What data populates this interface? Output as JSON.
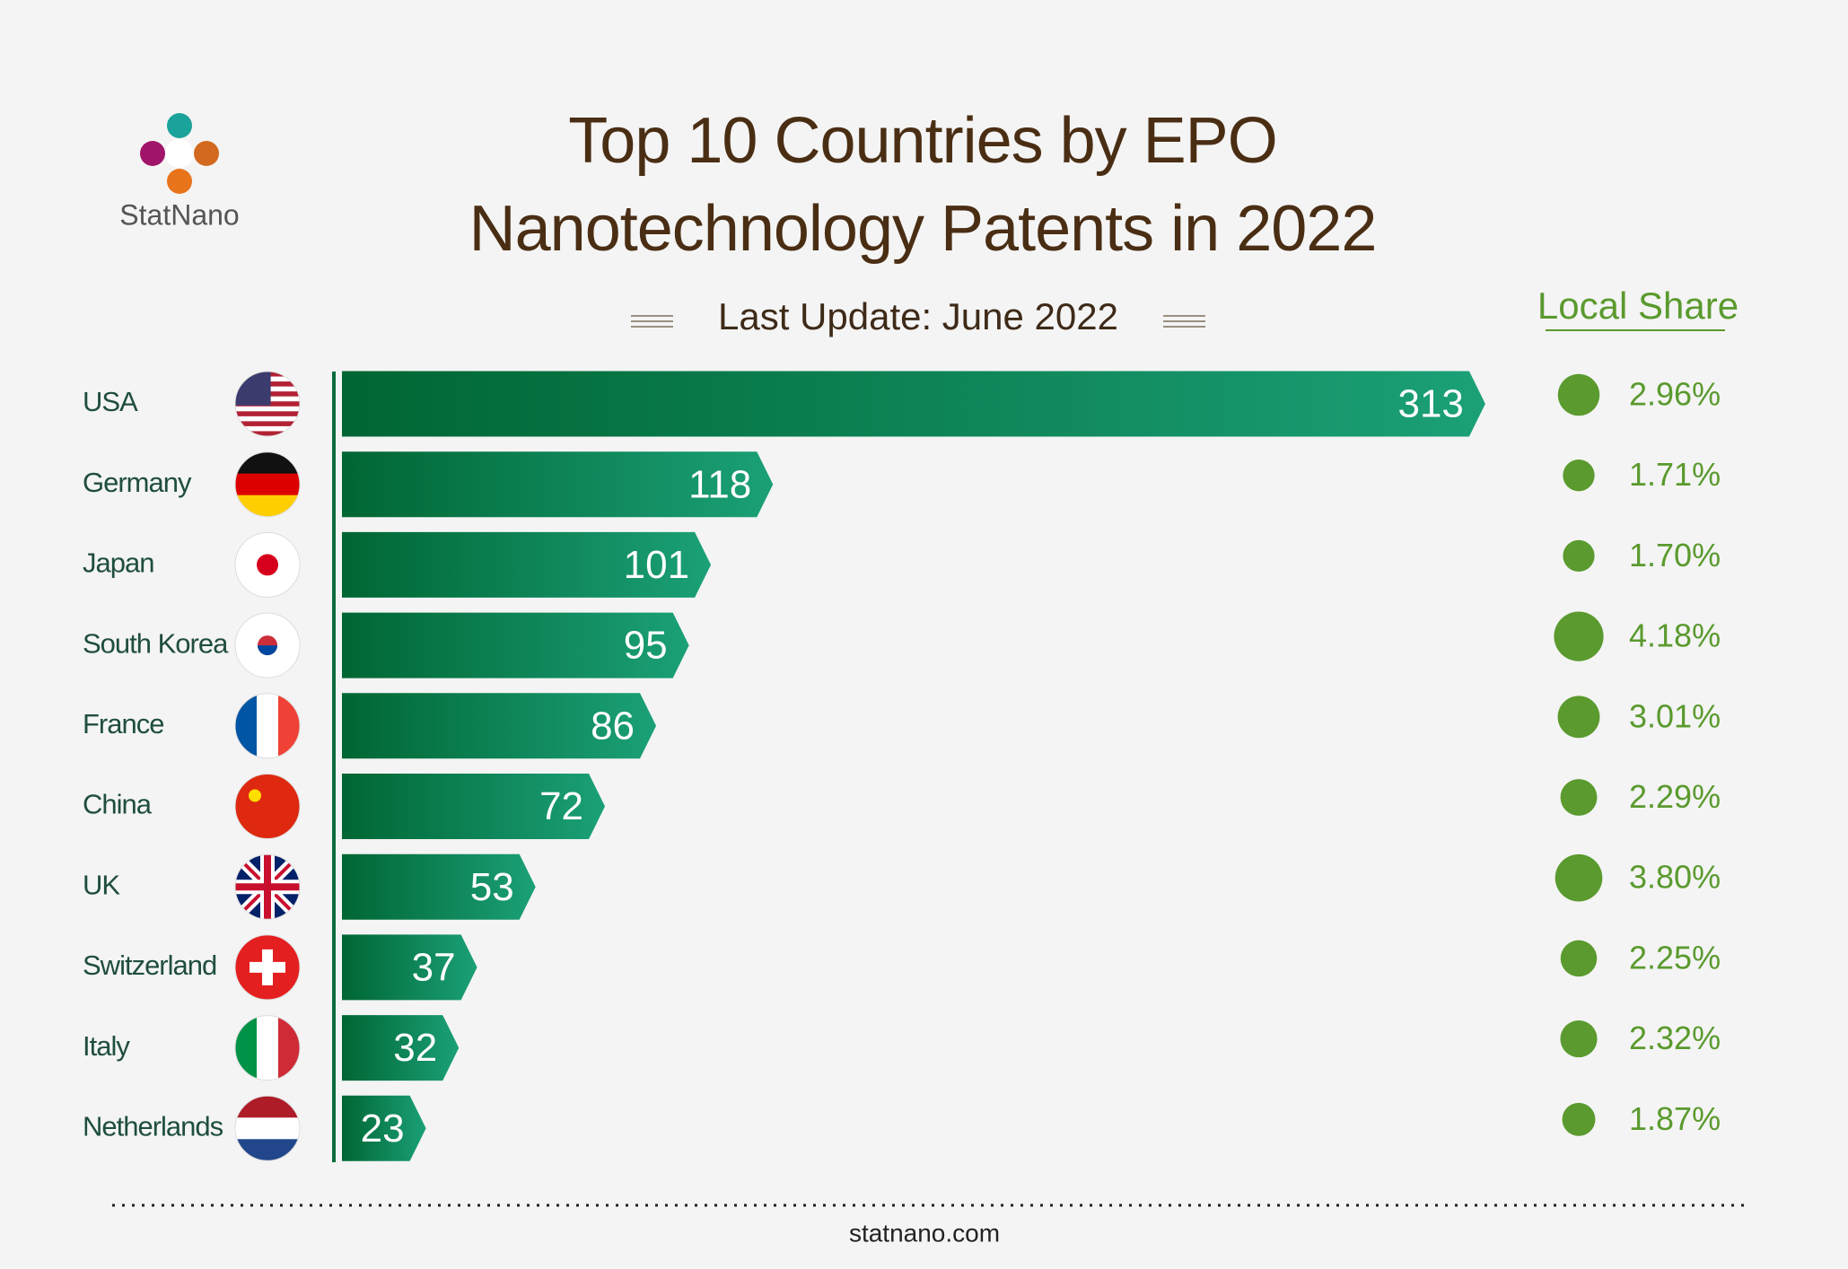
{
  "logo": "StatNano",
  "footer": "statnano.com",
  "chart_data": {
    "type": "bar",
    "orientation": "horizontal",
    "title": "Top 10 Countries by EPO Nanotechnology Patents in 2022",
    "subtitle": "Last Update: June 2022",
    "categories": [
      "USA",
      "Germany",
      "Japan",
      "South Korea",
      "France",
      "China",
      "UK",
      "Switzerland",
      "Italy",
      "Netherlands"
    ],
    "values": [
      313,
      118,
      101,
      95,
      86,
      72,
      53,
      37,
      32,
      23
    ],
    "color": "#0a7a4a",
    "local_share": {
      "title": "Local Share",
      "values": [
        2.96,
        1.71,
        1.7,
        4.18,
        3.01,
        2.29,
        3.8,
        2.25,
        2.32,
        1.87
      ],
      "value_labels": [
        "2.96%",
        "1.71%",
        "1.70%",
        "4.18%",
        "3.01%",
        "2.29%",
        "3.80%",
        "2.25%",
        "2.32%",
        "1.87%"
      ],
      "color": "#5a9a2e"
    }
  }
}
